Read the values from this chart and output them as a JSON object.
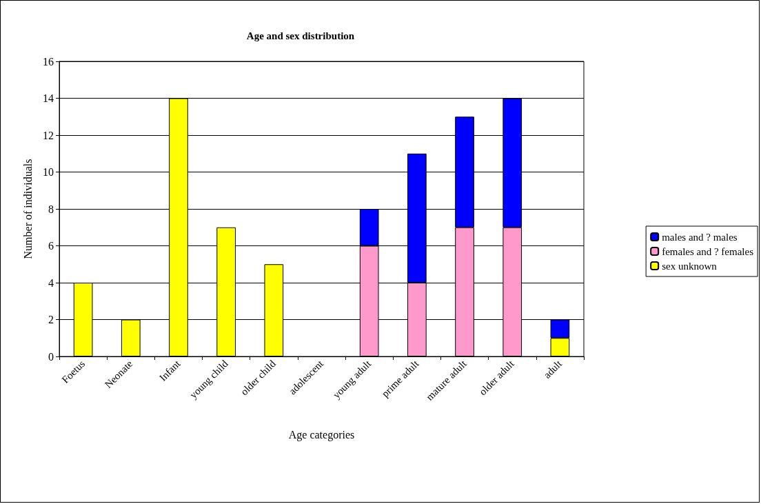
{
  "chart_data": {
    "type": "bar",
    "title": "Age and sex distribution",
    "xlabel": "Age categories",
    "ylabel": "Number of individuals",
    "categories": [
      "Foetus",
      "Neonate",
      "Infant",
      "young child",
      "older child",
      "adolescent",
      "young adult",
      "prime adult",
      "mature adult",
      "older adult",
      "adult"
    ],
    "stacked": true,
    "series": [
      {
        "name": "sex unknown",
        "color": "#ffff00",
        "values": [
          4,
          2,
          14,
          7,
          5,
          null,
          null,
          null,
          null,
          null,
          1
        ]
      },
      {
        "name": "females and ? females",
        "color": "#ff99cc",
        "values": [
          null,
          null,
          null,
          null,
          null,
          null,
          6,
          4,
          7,
          7,
          null
        ]
      },
      {
        "name": "males and ? males",
        "color": "#0000ff",
        "values": [
          null,
          null,
          null,
          null,
          null,
          null,
          2,
          7,
          6,
          7,
          1
        ]
      }
    ],
    "ylim": [
      0,
      16
    ],
    "yticks": [
      0,
      2,
      4,
      6,
      8,
      10,
      12,
      14,
      16
    ],
    "grid": "y",
    "legend": "right"
  }
}
